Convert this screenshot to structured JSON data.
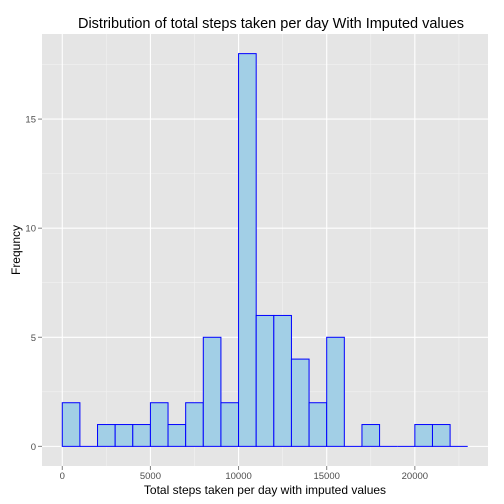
{
  "chart_data": {
    "type": "bar",
    "title": "Distribution of total steps taken per day With Imputed values",
    "xlabel": "Total steps taken per day with imputed values",
    "ylabel": "Frequncy",
    "bin_width": 1000,
    "bins": [
      {
        "start": 0,
        "end": 1000,
        "count": 2
      },
      {
        "start": 1000,
        "end": 2000,
        "count": 0
      },
      {
        "start": 2000,
        "end": 3000,
        "count": 1
      },
      {
        "start": 3000,
        "end": 4000,
        "count": 1
      },
      {
        "start": 4000,
        "end": 5000,
        "count": 1
      },
      {
        "start": 5000,
        "end": 6000,
        "count": 2
      },
      {
        "start": 6000,
        "end": 7000,
        "count": 1
      },
      {
        "start": 7000,
        "end": 8000,
        "count": 2
      },
      {
        "start": 8000,
        "end": 9000,
        "count": 5
      },
      {
        "start": 9000,
        "end": 10000,
        "count": 2
      },
      {
        "start": 10000,
        "end": 11000,
        "count": 18
      },
      {
        "start": 11000,
        "end": 12000,
        "count": 6
      },
      {
        "start": 12000,
        "end": 13000,
        "count": 6
      },
      {
        "start": 13000,
        "end": 14000,
        "count": 4
      },
      {
        "start": 14000,
        "end": 15000,
        "count": 2
      },
      {
        "start": 15000,
        "end": 16000,
        "count": 5
      },
      {
        "start": 16000,
        "end": 17000,
        "count": 0
      },
      {
        "start": 17000,
        "end": 18000,
        "count": 1
      },
      {
        "start": 18000,
        "end": 19000,
        "count": 0
      },
      {
        "start": 19000,
        "end": 20000,
        "count": 0
      },
      {
        "start": 20000,
        "end": 21000,
        "count": 1
      },
      {
        "start": 21000,
        "end": 22000,
        "count": 1
      },
      {
        "start": 22000,
        "end": 23000,
        "count": 0
      }
    ],
    "xlim": [
      -1150,
      24150
    ],
    "ylim": [
      -0.9,
      18.9
    ],
    "x_ticks": [
      {
        "value": 0,
        "label": "0"
      },
      {
        "value": 5000,
        "label": "5000"
      },
      {
        "value": 10000,
        "label": "10000"
      },
      {
        "value": 15000,
        "label": "15000"
      },
      {
        "value": 20000,
        "label": "20000"
      }
    ],
    "y_ticks": [
      {
        "value": 0,
        "label": "0"
      },
      {
        "value": 5,
        "label": "5"
      },
      {
        "value": 10,
        "label": "10"
      },
      {
        "value": 15,
        "label": "15"
      }
    ],
    "grid": true,
    "legend": "none",
    "colors": {
      "panel_background": "#e5e5e5",
      "grid_major": "#ffffff",
      "grid_minor": "#f2f2f2",
      "bar_fill": "#a2cfe6",
      "bar_outline": "#0000ff",
      "tick_text": "#4d4d4d"
    }
  }
}
